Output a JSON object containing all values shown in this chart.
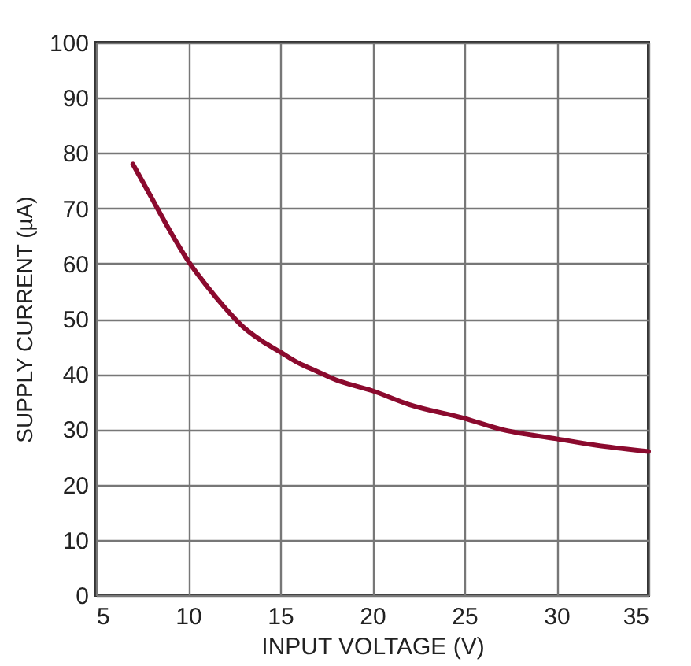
{
  "chart_data": {
    "type": "line",
    "xlabel": "INPUT VOLTAGE (V)",
    "ylabel": "SUPPLY CURRENT (µA)",
    "x": [
      7,
      8,
      9,
      10,
      11,
      12,
      13,
      14,
      15,
      16,
      17,
      18,
      20,
      22,
      25,
      27,
      30,
      32,
      35
    ],
    "series": [
      {
        "color": "#8b0a2e",
        "values": [
          78,
          72,
          66,
          60.5,
          56,
          52,
          48.5,
          46,
          44,
          42,
          40.5,
          39,
          37,
          34.5,
          32,
          30,
          28.3,
          27.2,
          26
        ]
      }
    ],
    "xlim": [
      5,
      35
    ],
    "xticks": [
      5,
      10,
      15,
      20,
      25,
      30,
      35
    ],
    "ylim": [
      0,
      100
    ],
    "yticks": [
      0,
      10,
      20,
      30,
      40,
      50,
      60,
      70,
      80,
      90,
      100
    ],
    "grid": true,
    "marker": "none",
    "line_style": "solid"
  }
}
